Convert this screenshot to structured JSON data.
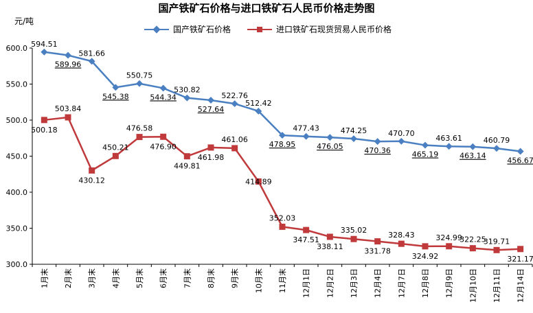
{
  "chart_data": {
    "type": "line",
    "title": "国产铁矿石价格与进口铁矿石人民币价格走势图",
    "ylabel": "元/吨",
    "xlabel": "",
    "ylim": [
      300,
      600
    ],
    "yticks": [
      "300.0",
      "350.0",
      "400.0",
      "450.0",
      "500.0",
      "550.0",
      "600.0"
    ],
    "grid": false,
    "legend_position": "top",
    "categories": [
      "1月末",
      "2月末",
      "3月末",
      "4月末",
      "5月末",
      "6月末",
      "7月末",
      "8月末",
      "9月末",
      "10月末",
      "11月末",
      "12月1日",
      "12月2日",
      "12月3日",
      "12月4日",
      "12月7日",
      "12月8日",
      "12月9日",
      "12月10日",
      "12月11日",
      "12月14日"
    ],
    "series": [
      {
        "name": "国产铁矿石价格",
        "color": "#4a7fc1",
        "marker": "diamond",
        "values": [
          594.51,
          589.96,
          581.66,
          545.38,
          550.75,
          544.34,
          530.82,
          527.64,
          522.76,
          512.42,
          478.95,
          477.43,
          476.05,
          474.25,
          470.36,
          470.7,
          465.19,
          463.61,
          463.14,
          460.79,
          456.67
        ],
        "labels": [
          "594.51",
          "589.96",
          "581.66",
          "545.38",
          "550.75",
          "544.34",
          "530.82",
          "527.64",
          "522.76",
          "512.42",
          "478.95",
          "477.43",
          "476.05",
          "474.25",
          "470.36",
          "470.70",
          "465.19",
          "463.61",
          "463.14",
          "460.79",
          "456.67"
        ]
      },
      {
        "name": "进口铁矿石现货贸易人民币价格",
        "color": "#c0393b",
        "marker": "square",
        "values": [
          500.18,
          503.84,
          430.12,
          450.21,
          476.58,
          476.9,
          449.81,
          461.98,
          461.06,
          414.89,
          352.03,
          347.51,
          338.11,
          335.02,
          331.78,
          328.43,
          324.92,
          324.99,
          322.25,
          319.71,
          321.17
        ],
        "labels": [
          "500.18",
          "503.84",
          "430.12",
          "450.21",
          "476.58",
          "476.90",
          "449.81",
          "461.98",
          "461.06",
          "414.89",
          "352.03",
          "347.51",
          "338.11",
          "335.02",
          "331.78",
          "328.43",
          "324.92",
          "324.99",
          "322.25",
          "319.71",
          "321.17"
        ]
      }
    ]
  }
}
